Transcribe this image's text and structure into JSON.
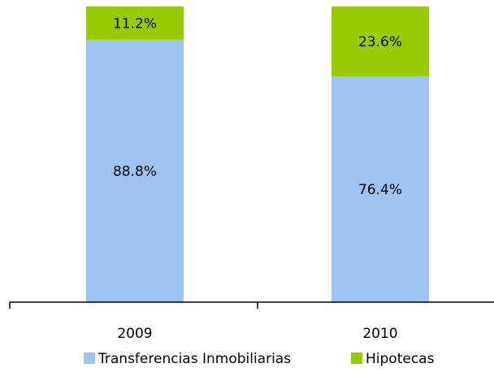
{
  "chart_data": {
    "type": "stacked_bar",
    "categories": [
      "2009",
      "2010"
    ],
    "series": [
      {
        "name": "Transferencias Inmobiliarias",
        "color": "#9dc3f2",
        "values": [
          88.8,
          76.4
        ],
        "value_labels": [
          "88.8%",
          "76.4%"
        ]
      },
      {
        "name": "Hipotecas",
        "color": "#99cc00",
        "values": [
          11.2,
          23.6
        ],
        "value_labels": [
          "11.2%",
          "23.6%"
        ]
      }
    ],
    "ylim": [
      0,
      100
    ]
  }
}
